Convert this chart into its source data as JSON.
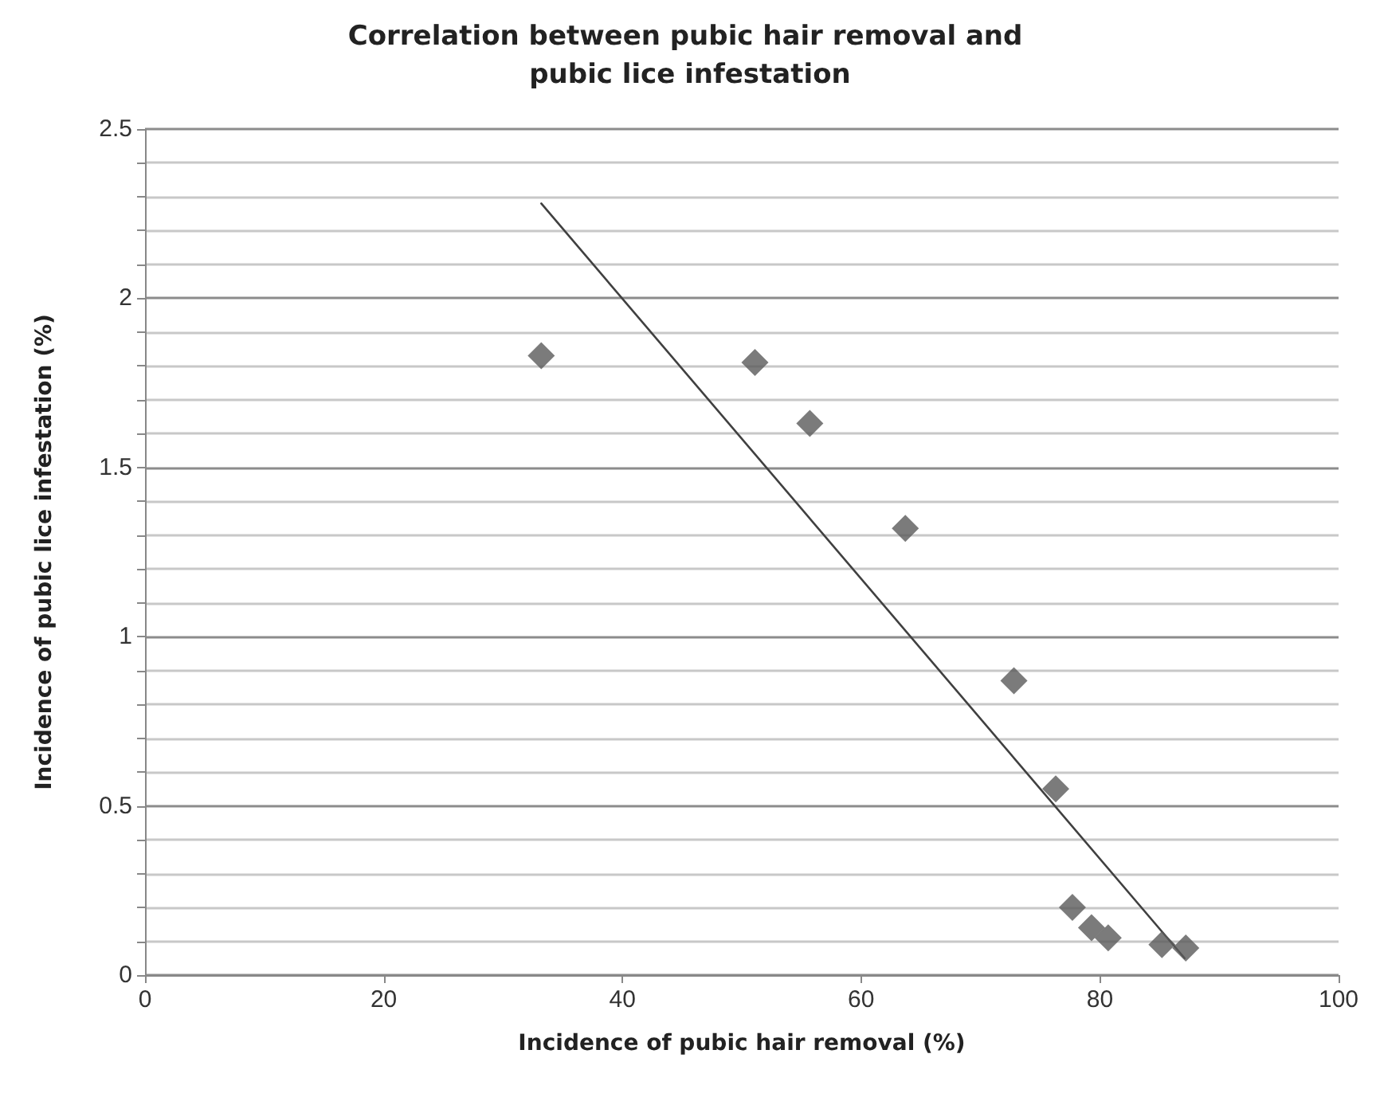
{
  "chart_data": {
    "type": "scatter",
    "title": "Correlation between pubic hair removal and pubic lice infestation",
    "xlabel": "Incidence of pubic hair removal (%)",
    "ylabel": "Incidence of pubic lice infestation (%)",
    "series": [
      {
        "color": "#5a5a5a",
        "marker": "diamond",
        "x": [
          33.2,
          51.1,
          55.7,
          63.7,
          72.8,
          76.3,
          77.7,
          79.3,
          80.7,
          85.2,
          87.2
        ],
        "values": [
          1.83,
          1.81,
          1.63,
          1.32,
          0.87,
          0.55,
          0.2,
          0.14,
          0.11,
          0.09,
          0.08
        ]
      },
      {
        "type": "line",
        "color": "#404040",
        "marker": "none",
        "line_style": "solid",
        "x": [
          33.2,
          87.1
        ],
        "values": [
          2.28,
          0.05
        ]
      }
    ],
    "xlim": [
      0,
      100
    ],
    "xticks": [
      0,
      20,
      40,
      60,
      80,
      100
    ],
    "ylim": [
      0,
      2.5
    ],
    "yticks": [
      0,
      {
        "value": 0.1,
        "label": null
      },
      {
        "value": 0.2,
        "label": null
      },
      {
        "value": 0.3,
        "label": null
      },
      {
        "value": 0.4,
        "label": null
      },
      0.5,
      {
        "value": 0.6,
        "label": null
      },
      {
        "value": 0.7,
        "label": null
      },
      {
        "value": 0.8,
        "label": null
      },
      {
        "value": 0.9,
        "label": null
      },
      1,
      {
        "value": 1.1,
        "label": null
      },
      {
        "value": 1.2,
        "label": null
      },
      {
        "value": 1.3,
        "label": null
      },
      {
        "value": 1.4,
        "label": null
      },
      1.5,
      {
        "value": 1.6,
        "label": null
      },
      {
        "value": 1.7,
        "label": null
      },
      {
        "value": 1.8,
        "label": null
      },
      {
        "value": 1.9,
        "label": null
      },
      2,
      {
        "value": 2.1,
        "label": null
      },
      {
        "value": 2.2,
        "label": null
      },
      {
        "value": 2.3,
        "label": null
      },
      {
        "value": 2.4,
        "label": null
      },
      2.5
    ],
    "grid": "y"
  }
}
